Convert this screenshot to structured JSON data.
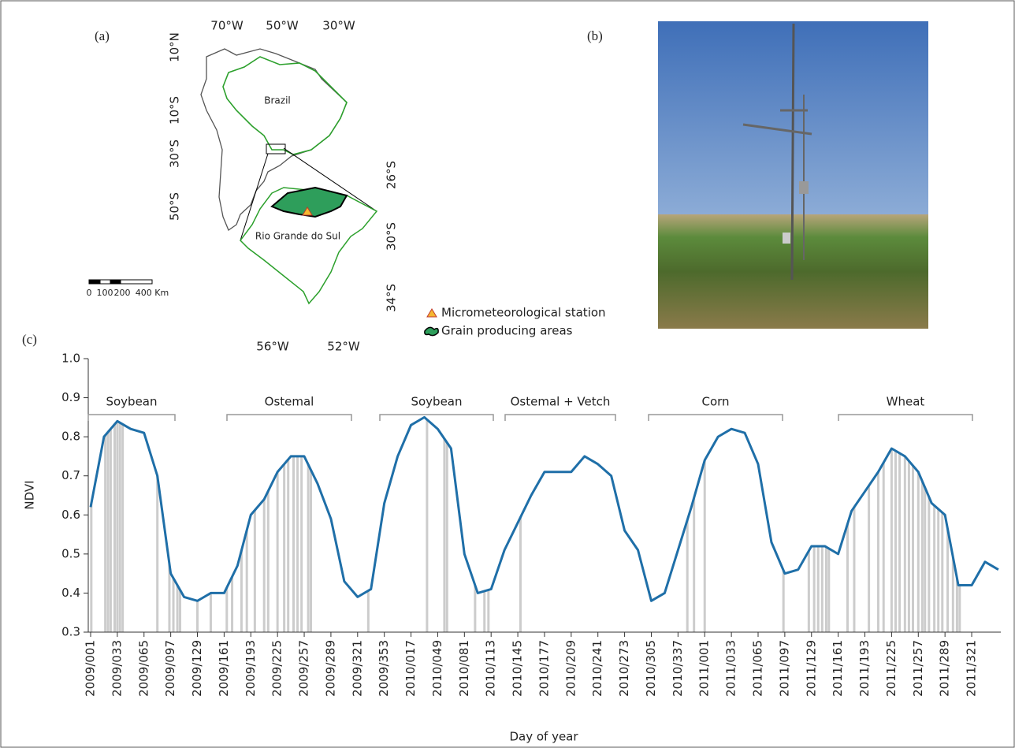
{
  "panel_a": {
    "label": "(a)",
    "lon_top": [
      "70°W",
      "50°W",
      "30°W"
    ],
    "lat_left": [
      "10°N",
      "10°S",
      "30°S",
      "50°S"
    ],
    "lat_right": [
      "26°S",
      "30°S",
      "34°S"
    ],
    "lon_bottom": [
      "56°W",
      "52°W"
    ],
    "places": [
      "Brazil",
      "Rio Grande do Sul"
    ],
    "scale": [
      "0",
      "100",
      "200",
      "400 Km"
    ]
  },
  "panel_b": {
    "label": "(b)"
  },
  "legend": [
    "Micrometeorological station",
    "Grain producing areas"
  ],
  "chart_data": {
    "type": "line",
    "panel_label": "(c)",
    "x_label": "Day of year",
    "y_label": "NDVI",
    "categories": [
      "2009/001",
      null,
      "2009/033",
      null,
      "2009/065",
      null,
      "2009/097",
      null,
      "2009/129",
      null,
      "2009/161",
      null,
      "2009/193",
      null,
      "2009/225",
      null,
      "2009/257",
      null,
      "2009/289",
      null,
      "2009/321",
      null,
      "2009/353",
      null,
      "2010/017",
      null,
      "2010/049",
      null,
      "2010/081",
      null,
      "2010/113",
      null,
      "2010/145",
      null,
      "2010/177",
      null,
      "2010/209",
      null,
      "2010/241",
      null,
      "2010/273",
      null,
      "2010/305",
      null,
      "2010/337",
      null,
      "2011/001",
      null,
      "2011/033",
      null,
      "2011/065",
      null,
      "2011/097",
      null,
      "2011/129",
      null,
      "2011/161",
      null,
      "2011/193",
      null,
      "2011/225",
      null,
      "2011/257",
      null,
      "2011/289",
      null,
      "2011/321",
      null,
      null
    ],
    "series": [
      {
        "name": "NDVI",
        "color": "#1f6fa8",
        "values": [
          0.62,
          0.8,
          0.84,
          0.82,
          0.81,
          0.7,
          0.45,
          0.39,
          0.38,
          0.4,
          0.4,
          0.47,
          0.6,
          0.64,
          0.71,
          0.75,
          0.75,
          0.68,
          0.59,
          0.43,
          0.39,
          0.41,
          0.63,
          0.75,
          0.83,
          0.85,
          0.82,
          0.77,
          0.5,
          0.4,
          0.41,
          0.51,
          0.58,
          0.65,
          0.71,
          0.71,
          0.71,
          0.75,
          0.73,
          0.7,
          0.56,
          0.51,
          0.38,
          0.4,
          0.51,
          0.62,
          0.74,
          0.8,
          0.82,
          0.81,
          0.73,
          0.53,
          0.45,
          0.46,
          0.52,
          0.52,
          0.5,
          0.61,
          0.66,
          0.71,
          0.77,
          0.75,
          0.71,
          0.63,
          0.6,
          0.42,
          0.42,
          0.48,
          0.46
        ]
      }
    ],
    "observations": {
      "color": "#cccccc",
      "x": [
        0.05,
        1.1,
        1.3,
        1.5,
        1.8,
        2.0,
        2.2,
        2.4,
        5.0,
        5.9,
        6.2,
        6.5,
        6.7,
        8.0,
        9.0,
        10.2,
        10.6,
        11.3,
        11.7,
        12.3,
        13.0,
        13.3,
        14.0,
        14.5,
        14.8,
        15.2,
        15.5,
        15.8,
        16.3,
        16.5,
        20.8,
        25.2,
        26.5,
        26.7,
        28.8,
        29.5,
        29.8,
        32.2,
        44.7,
        45.2,
        46.0,
        51.9,
        53.8,
        54.2,
        54.5,
        54.8,
        55.1,
        55.3,
        56.7,
        57.2,
        58.3,
        59.0,
        59.4,
        60.0,
        60.3,
        60.6,
        61.0,
        61.3,
        61.6,
        62.0,
        62.3,
        62.5,
        62.8,
        63.2,
        63.5,
        63.8,
        64.2,
        64.6,
        64.9,
        65.1
      ]
    },
    "crop_periods": [
      "Soybean",
      "Ostemal",
      "Soybean",
      "Ostemal + Vetch",
      "Corn",
      "Wheat"
    ],
    "ylim": [
      0.3,
      1.0
    ],
    "yticks": [
      0.3,
      0.4,
      0.5,
      0.6,
      0.7,
      0.8,
      0.9,
      {
        "value": 1.0,
        "label": "1.0"
      }
    ]
  }
}
